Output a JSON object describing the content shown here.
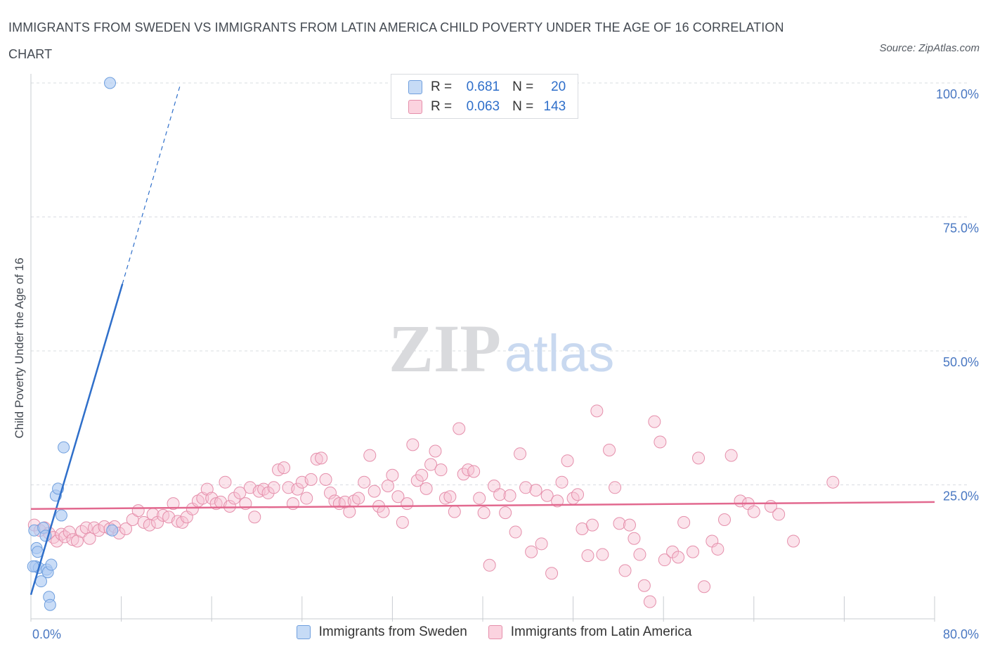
{
  "title": "IMMIGRANTS FROM SWEDEN VS IMMIGRANTS FROM LATIN AMERICA CHILD POVERTY UNDER THE AGE OF 16 CORRELATION CHART",
  "source": "Source: ZipAtlas.com",
  "watermark": {
    "zip": "ZIP",
    "atlas": "atlas"
  },
  "legend": {
    "rows": [
      {
        "r_label": "R =",
        "r_value": "0.681",
        "n_label": "N =",
        "n_value": "20",
        "color": "#aecbf2",
        "border": "#6f9fde"
      },
      {
        "r_label": "R =",
        "r_value": "0.063",
        "n_label": "N =",
        "n_value": "143",
        "color": "#f7c2d2",
        "border": "#e58fab"
      }
    ]
  },
  "colors": {
    "sweden_fill": "#aecbf2",
    "sweden_stroke": "#6f9fde",
    "sweden_line": "#2f6fca",
    "latam_fill": "#f7c2d2",
    "latam_stroke": "#e58fab",
    "latam_line": "#e2698f",
    "grid": "#d9dce1",
    "tick_text": "#4a78c2"
  },
  "chart_data": {
    "type": "scatter",
    "title": "IMMIGRANTS FROM SWEDEN VS IMMIGRANTS FROM LATIN AMERICA CHILD POVERTY UNDER THE AGE OF 16 CORRELATION CHART",
    "xlabel": "",
    "ylabel": "Child Poverty Under the Age of 16",
    "xlim": [
      0,
      80
    ],
    "ylim": [
      0,
      100
    ],
    "x_tick_labels": [
      "0.0%",
      "80.0%"
    ],
    "y_tick_labels": [
      "25.0%",
      "50.0%",
      "75.0%",
      "100.0%"
    ],
    "y_ticks": [
      25,
      50,
      75,
      100
    ],
    "grid": true,
    "legend_position": "top-center",
    "series": [
      {
        "name": "Immigrants from Sweden",
        "r": 0.681,
        "n": 20,
        "trend": {
          "x": [
            0,
            8.1
          ],
          "y": [
            4.5,
            62.5
          ],
          "dashed_to": [
            13.2,
            99.5
          ]
        },
        "points": [
          [
            0.3,
            16.5
          ],
          [
            0.4,
            9.8
          ],
          [
            0.5,
            13.2
          ],
          [
            0.6,
            12.5
          ],
          [
            0.7,
            9.5
          ],
          [
            0.9,
            7.0
          ],
          [
            1.1,
            17.0
          ],
          [
            1.3,
            15.5
          ],
          [
            1.4,
            9.2
          ],
          [
            1.5,
            8.7
          ],
          [
            1.6,
            4.1
          ],
          [
            1.7,
            2.6
          ],
          [
            1.8,
            10.1
          ],
          [
            2.2,
            23.0
          ],
          [
            2.4,
            24.3
          ],
          [
            2.7,
            19.3
          ],
          [
            2.9,
            32.0
          ],
          [
            7.0,
            100.0
          ],
          [
            7.2,
            16.5
          ],
          [
            0.2,
            9.8
          ]
        ]
      },
      {
        "name": "Immigrants from Latin America",
        "r": 0.063,
        "n": 143,
        "trend": {
          "x": [
            0,
            80
          ],
          "y": [
            20.5,
            21.8
          ]
        },
        "points": [
          [
            0.3,
            17.5
          ],
          [
            0.8,
            16.5
          ],
          [
            1.2,
            17.0
          ],
          [
            1.6,
            16.0
          ],
          [
            2.0,
            15.2
          ],
          [
            2.3,
            14.5
          ],
          [
            2.7,
            15.8
          ],
          [
            3.0,
            15.3
          ],
          [
            3.4,
            16.2
          ],
          [
            3.7,
            14.8
          ],
          [
            4.1,
            14.5
          ],
          [
            4.5,
            16.3
          ],
          [
            4.9,
            17.0
          ],
          [
            5.2,
            15.0
          ],
          [
            5.6,
            17.0
          ],
          [
            6.0,
            16.5
          ],
          [
            6.5,
            17.2
          ],
          [
            7.0,
            16.8
          ],
          [
            7.4,
            17.2
          ],
          [
            7.8,
            16.0
          ],
          [
            8.4,
            16.8
          ],
          [
            9.0,
            18.5
          ],
          [
            9.5,
            20.2
          ],
          [
            10.0,
            18.0
          ],
          [
            10.5,
            17.5
          ],
          [
            10.8,
            19.5
          ],
          [
            11.2,
            18.0
          ],
          [
            11.7,
            19.3
          ],
          [
            12.2,
            19.0
          ],
          [
            12.6,
            21.5
          ],
          [
            13.0,
            18.2
          ],
          [
            13.4,
            18.0
          ],
          [
            13.8,
            19.0
          ],
          [
            14.3,
            20.5
          ],
          [
            14.8,
            22.0
          ],
          [
            15.2,
            22.5
          ],
          [
            15.6,
            24.2
          ],
          [
            16.0,
            22.5
          ],
          [
            16.4,
            21.5
          ],
          [
            16.8,
            21.8
          ],
          [
            17.2,
            25.5
          ],
          [
            17.6,
            21.0
          ],
          [
            18.0,
            22.5
          ],
          [
            18.5,
            23.5
          ],
          [
            19.0,
            21.5
          ],
          [
            19.4,
            24.5
          ],
          [
            19.8,
            19.0
          ],
          [
            20.2,
            23.8
          ],
          [
            20.6,
            24.2
          ],
          [
            21.0,
            23.5
          ],
          [
            21.5,
            24.5
          ],
          [
            21.9,
            27.8
          ],
          [
            22.4,
            28.2
          ],
          [
            22.8,
            24.5
          ],
          [
            23.2,
            21.5
          ],
          [
            23.6,
            24.2
          ],
          [
            24.0,
            25.5
          ],
          [
            24.4,
            22.5
          ],
          [
            24.8,
            26.0
          ],
          [
            25.3,
            29.8
          ],
          [
            25.7,
            30.0
          ],
          [
            26.1,
            26.0
          ],
          [
            26.5,
            23.5
          ],
          [
            26.9,
            22.0
          ],
          [
            27.3,
            21.5
          ],
          [
            27.8,
            21.8
          ],
          [
            28.2,
            20.0
          ],
          [
            28.6,
            22.0
          ],
          [
            29.0,
            22.5
          ],
          [
            29.5,
            25.5
          ],
          [
            30.0,
            30.5
          ],
          [
            30.4,
            23.8
          ],
          [
            30.8,
            21.0
          ],
          [
            31.2,
            20.0
          ],
          [
            31.6,
            24.8
          ],
          [
            32.0,
            26.8
          ],
          [
            32.5,
            22.8
          ],
          [
            32.9,
            18.0
          ],
          [
            33.3,
            21.5
          ],
          [
            33.8,
            32.5
          ],
          [
            34.2,
            25.8
          ],
          [
            34.6,
            26.8
          ],
          [
            35.0,
            24.3
          ],
          [
            35.4,
            28.8
          ],
          [
            35.8,
            31.3
          ],
          [
            36.3,
            27.8
          ],
          [
            36.7,
            22.5
          ],
          [
            37.1,
            22.8
          ],
          [
            37.5,
            20.0
          ],
          [
            37.9,
            35.5
          ],
          [
            38.3,
            27.0
          ],
          [
            38.7,
            27.8
          ],
          [
            39.2,
            27.5
          ],
          [
            39.7,
            22.5
          ],
          [
            40.1,
            19.8
          ],
          [
            40.6,
            10.0
          ],
          [
            41.0,
            24.8
          ],
          [
            41.5,
            23.2
          ],
          [
            42.0,
            19.8
          ],
          [
            42.4,
            23.0
          ],
          [
            42.9,
            16.2
          ],
          [
            43.3,
            30.8
          ],
          [
            43.8,
            24.5
          ],
          [
            44.3,
            12.5
          ],
          [
            44.7,
            24.0
          ],
          [
            45.2,
            14.0
          ],
          [
            45.7,
            23.0
          ],
          [
            46.1,
            8.5
          ],
          [
            46.6,
            22.0
          ],
          [
            47.0,
            25.5
          ],
          [
            47.5,
            29.5
          ],
          [
            48.0,
            22.5
          ],
          [
            48.4,
            23.2
          ],
          [
            48.8,
            16.8
          ],
          [
            49.3,
            11.8
          ],
          [
            49.7,
            17.5
          ],
          [
            50.1,
            38.8
          ],
          [
            50.6,
            12.0
          ],
          [
            51.2,
            31.5
          ],
          [
            51.7,
            24.5
          ],
          [
            52.1,
            17.8
          ],
          [
            52.6,
            9.0
          ],
          [
            53.0,
            17.5
          ],
          [
            53.4,
            15.0
          ],
          [
            53.9,
            12.0
          ],
          [
            54.3,
            6.2
          ],
          [
            54.8,
            3.2
          ],
          [
            55.2,
            36.8
          ],
          [
            55.7,
            33.0
          ],
          [
            56.1,
            11.0
          ],
          [
            56.8,
            12.5
          ],
          [
            57.3,
            11.5
          ],
          [
            57.8,
            18.0
          ],
          [
            58.6,
            12.5
          ],
          [
            59.1,
            30.0
          ],
          [
            59.6,
            6.0
          ],
          [
            60.3,
            14.5
          ],
          [
            60.8,
            13.0
          ],
          [
            61.4,
            18.5
          ],
          [
            62.0,
            30.5
          ],
          [
            62.8,
            22.0
          ],
          [
            63.5,
            21.5
          ],
          [
            67.5,
            14.5
          ],
          [
            71.0,
            25.5
          ],
          [
            64.0,
            20.0
          ],
          [
            65.5,
            21.0
          ],
          [
            66.2,
            19.5
          ]
        ]
      }
    ]
  },
  "bottom_legend": [
    "Immigrants from Sweden",
    "Immigrants from Latin America"
  ]
}
